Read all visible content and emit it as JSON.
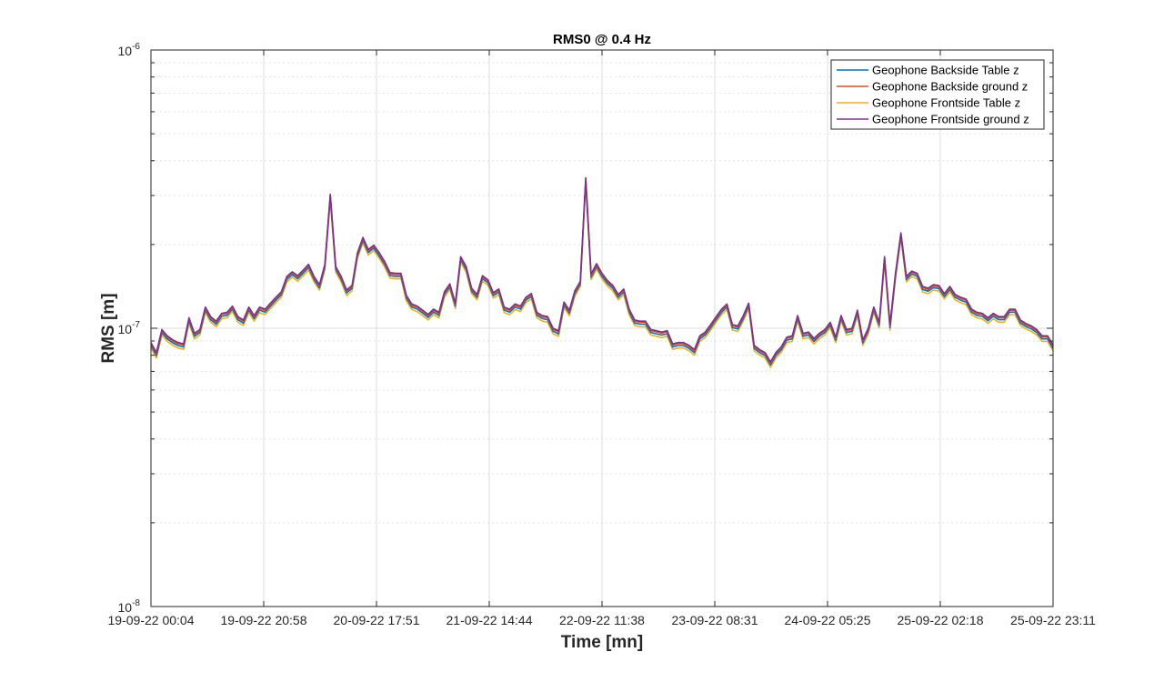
{
  "chart_data": {
    "type": "line",
    "title": "RMS0 @ 0.4 Hz",
    "xlabel": "Time [mn]",
    "ylabel": "RMS [m]",
    "y_scale": "log",
    "ylim": [
      1e-08,
      1e-06
    ],
    "y_ticks": [
      {
        "base": "10",
        "exp": "-6",
        "value": 1e-06
      },
      {
        "base": "10",
        "exp": "-7",
        "value": 1e-07
      },
      {
        "base": "10",
        "exp": "-8",
        "value": 1e-08
      }
    ],
    "x_tick_labels": [
      "19-09-22 00:04",
      "19-09-22 20:58",
      "20-09-22 17:51",
      "21-09-22 14:44",
      "22-09-22 11:38",
      "23-09-22 08:31",
      "24-09-22 05:25",
      "25-09-22 02:18",
      "25-09-22 23:11"
    ],
    "grid": true,
    "legend_position": "top-right",
    "series": [
      {
        "name": "Geophone Backside Table z",
        "color": "#0072BD"
      },
      {
        "name": "Geophone Backside ground z",
        "color": "#D95319"
      },
      {
        "name": "Geophone Frontside Table z",
        "color": "#EDB120"
      },
      {
        "name": "Geophone Frontside ground z",
        "color": "#7E2F8E"
      }
    ],
    "base_values": [
      8.8,
      8.1,
      9.8,
      9.3,
      9.0,
      8.8,
      8.7,
      10.8,
      9.5,
      9.8,
      11.8,
      10.9,
      10.5,
      11.2,
      11.3,
      11.9,
      10.9,
      10.6,
      11.8,
      11.0,
      11.8,
      11.6,
      12.2,
      12.8,
      13.4,
      15.2,
      15.8,
      15.3,
      16.0,
      16.8,
      15.2,
      14.2,
      16.8,
      30.0,
      16.5,
      15.2,
      13.6,
      14.1,
      18.5,
      21.0,
      19.0,
      19.7,
      18.5,
      17.2,
      15.7,
      15.6,
      15.6,
      13.0,
      12.1,
      11.9,
      11.5,
      11.1,
      11.6,
      11.3,
      13.4,
      14.3,
      12.2,
      17.9,
      16.5,
      13.8,
      13.1,
      15.3,
      14.8,
      13.3,
      13.7,
      11.8,
      11.6,
      12.1,
      11.9,
      12.8,
      13.2,
      11.3,
      11.0,
      10.9,
      9.9,
      9.7,
      12.3,
      11.5,
      13.5,
      14.6,
      34.4,
      15.5,
      16.9,
      15.6,
      14.7,
      14.1,
      13.1,
      13.7,
      11.6,
      10.6,
      10.5,
      10.5,
      9.8,
      9.7,
      9.6,
      9.7,
      8.7,
      8.8,
      8.8,
      8.6,
      8.3,
      9.3,
      9.6,
      10.2,
      10.9,
      11.6,
      12.1,
      10.2,
      10.1,
      11.0,
      12.2,
      8.6,
      8.3,
      8.1,
      7.5,
      8.1,
      8.5,
      9.2,
      9.3,
      11.0,
      9.5,
      9.6,
      9.1,
      9.5,
      9.8,
      10.4,
      9.2,
      11.0,
      9.8,
      9.9,
      11.5,
      9.0,
      9.9,
      11.8,
      10.4,
      17.9,
      10.2,
      15.6,
      21.8,
      15.2,
      15.9,
      15.6,
      14.0,
      13.8,
      14.2,
      14.1,
      13.2,
      14.0,
      13.1,
      12.8,
      12.6,
      11.6,
      11.3,
      11.2,
      10.8,
      11.2,
      10.9,
      10.9,
      11.6,
      11.6,
      10.6,
      10.3,
      10.1,
      9.8,
      9.3,
      9.3,
      8.6
    ],
    "series_offsets": [
      {
        "name": "Geophone Backside Table z",
        "factor": 0.985
      },
      {
        "name": "Geophone Backside ground z",
        "factor": 1.0
      },
      {
        "name": "Geophone Frontside Table z",
        "factor": 0.965
      },
      {
        "name": "Geophone Frontside ground z",
        "factor": 1.01
      }
    ],
    "value_unit_exp": -8
  }
}
